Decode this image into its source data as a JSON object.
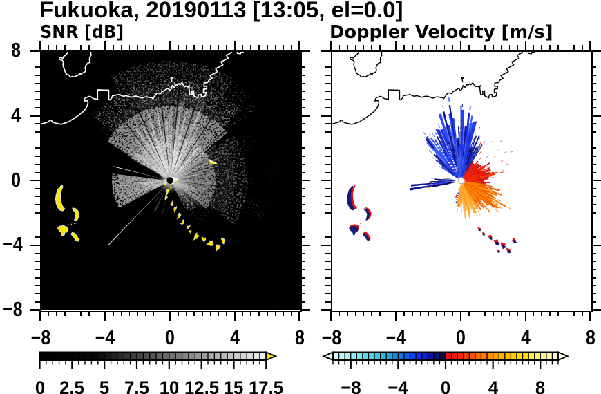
{
  "figure_title": "Fukuoka, 20190113 [13:05, el=0.0]",
  "chart_data": {
    "type": "heatmap",
    "title": "Fukuoka, 20190113 [13:05, el=0.0]",
    "site": "Fukuoka",
    "date": "20190113",
    "time": "13:05",
    "elevation": 0.0,
    "panels": [
      {
        "name": "SNR [dB]",
        "kind": "radar PPI, signal-to-noise ratio",
        "xlim": [
          -8,
          8
        ],
        "ylim": [
          -8,
          8
        ],
        "xticks": [
          -8,
          -4,
          0,
          4,
          8
        ],
        "yticks": [
          8,
          4,
          0,
          -4,
          -8
        ],
        "xtick_labels": [
          "−8",
          "−4",
          "0",
          "4",
          "8"
        ],
        "ytick_labels": [
          "8",
          "4",
          "0",
          "−4",
          "−8"
        ],
        "minor_tick_step": 0.5,
        "background": "#000000",
        "coastline_color": "#ffffff",
        "radar_center": [
          0,
          0
        ],
        "features": "grey radial echo fan to N/E/W of radar centre; dark shadow sectors to S and SW; yellow high-SNR ship echoes: chain curving from centre toward (3.3,-4) and blobs near west edge around (-6.8,-1) to (-5.8,-3.6); yellow dash at (2.6,1.1)",
        "colorbar": {
          "min": 0,
          "max": 17.5,
          "cell_step": 0.5,
          "tick_values": [
            0,
            2.5,
            5,
            7.5,
            10,
            12.5,
            15,
            17.5
          ],
          "tick_labels": [
            "0",
            "2.5",
            "5",
            "7.5",
            "10",
            "12.5",
            "15",
            "17.5"
          ],
          "minor_step": 0.5,
          "colors": [
            "#000000",
            "#010101",
            "#020202",
            "#030303",
            "#040404",
            "#050505",
            "#060606",
            "#070707",
            "#080808",
            "#101010",
            "#191919",
            "#222222",
            "#2b2b2b",
            "#343434",
            "#3c3c3c",
            "#454545",
            "#4e4e4e",
            "#575757",
            "#606060",
            "#696969",
            "#727272",
            "#7b7b7b",
            "#838383",
            "#8c8c8c",
            "#959595",
            "#9e9e9e",
            "#a7a7a7",
            "#b0b0b0",
            "#b9b9b9",
            "#c2c2c2",
            "#cacaca",
            "#d3d3d3",
            "#dcdcdc",
            "#e5e5e5",
            "#eeeeee"
          ],
          "over_arrow": "#ffe400"
        }
      },
      {
        "name": "Doppler Velocity [m/s]",
        "kind": "radar PPI, Doppler velocity",
        "xlim": [
          -8,
          8
        ],
        "ylim": [
          -8,
          8
        ],
        "xticks": [
          -8,
          -4,
          0,
          4,
          8
        ],
        "yticks": [
          8,
          4,
          0,
          -4,
          -8
        ],
        "xtick_labels": [
          "−8",
          "−4",
          "0",
          "4",
          "8"
        ],
        "ytick_labels": [],
        "minor_tick_step": 0.5,
        "background": "#ffffff",
        "coastline_color": "#000000",
        "radar_center": [
          0,
          0
        ],
        "features": "blue (negative velocity) spiky fan N/NW of centre reaching r=4.5; red echoes E/NE; orange SE; amber S; navy-and-red ship echoes near west edge and along chain to (3,-4.3)",
        "colorbar": {
          "min": -9.5,
          "max": 9.5,
          "cell_step": 0.5,
          "tick_values": [
            -8,
            -4,
            0,
            4,
            8
          ],
          "tick_labels": [
            "−8",
            "−4",
            "0",
            "4",
            "8"
          ],
          "minor_step": 0.5,
          "colors": [
            "#dcf9fa",
            "#c4f4f7",
            "#acf0f4",
            "#94eaf0",
            "#7de3ed",
            "#66dcea",
            "#52d1e6",
            "#41c4e2",
            "#30b7de",
            "#22a4db",
            "#168cd8",
            "#0e73dd",
            "#0c59ea",
            "#0c43ee",
            "#0f31ea",
            "#1022d0",
            "#0d15a0",
            "#0b1071",
            "#090c4a",
            "#ec120a",
            "#f01904",
            "#f42800",
            "#f83f00",
            "#fb5400",
            "#fd6900",
            "#fe7c00",
            "#ff8f00",
            "#ffa000",
            "#ffb100",
            "#ffc000",
            "#ffcf00",
            "#ffda05",
            "#ffe20e",
            "#fcea4b",
            "#fbf078",
            "#fbf298",
            "#fcf5b1",
            "#fcf7c6"
          ],
          "under_arrow": "#f0fbfb",
          "over_arrow": "#fffce8"
        }
      }
    ]
  }
}
